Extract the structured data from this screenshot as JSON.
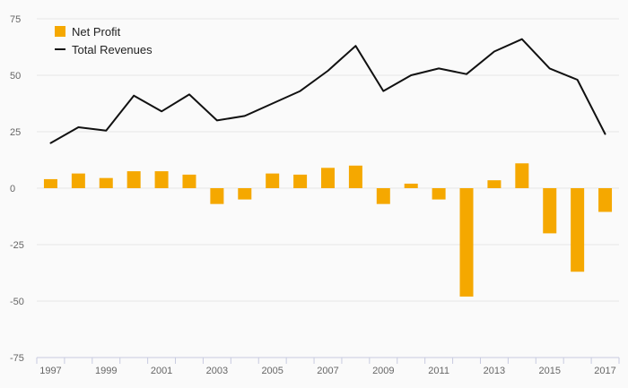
{
  "chart_data": {
    "type": "bar+line",
    "title": "",
    "xlabel": "",
    "ylabel": "",
    "ylim": [
      -75,
      75
    ],
    "yticks": [
      75,
      50,
      25,
      0,
      -25,
      -50,
      -75
    ],
    "grid": true,
    "legend_position": "top-left",
    "categories": [
      "1997",
      "1998",
      "1999",
      "2000",
      "2001",
      "2002",
      "2003",
      "2004",
      "2005",
      "2006",
      "2007",
      "2008",
      "2009",
      "2010",
      "2011",
      "2012",
      "2013",
      "2014",
      "2015",
      "2016",
      "2017"
    ],
    "x_tick_labels": [
      "1997",
      "1999",
      "2001",
      "2003",
      "2005",
      "2007",
      "2009",
      "2011",
      "2013",
      "2015",
      "2017"
    ],
    "series": [
      {
        "name": "Net Profit",
        "kind": "bar",
        "color": "#F5A800",
        "values": [
          4,
          6.5,
          4.5,
          7.5,
          7.5,
          6,
          -7,
          -5,
          6.5,
          6,
          9,
          10,
          -7,
          2,
          -5,
          -48,
          3.5,
          11,
          -20,
          -37,
          -10.5
        ]
      },
      {
        "name": "Total Revenues",
        "kind": "line",
        "color": "#111111",
        "values": [
          20,
          27,
          25.5,
          41,
          34,
          41.5,
          30,
          32,
          37.5,
          43,
          52,
          63,
          43,
          50,
          53,
          50.5,
          60.5,
          66,
          53,
          48,
          24
        ]
      }
    ]
  }
}
